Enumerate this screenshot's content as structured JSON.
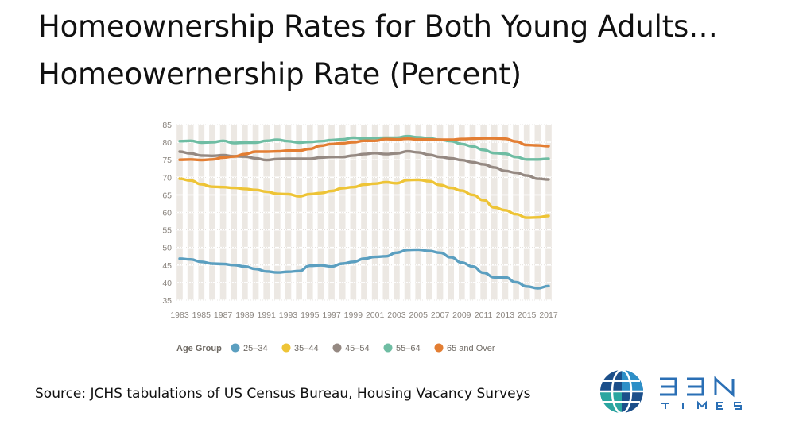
{
  "titles": {
    "line1": "Homeownership Rates for Both Young Adults…",
    "line2": "Homeowernership Rate (Percent)"
  },
  "source": "Source: JCHS tabulations of US Census Bureau, Housing Vacancy Surveys",
  "logo": {
    "brand": "BBN",
    "sub": "TIMES",
    "icon": "globe-icon"
  },
  "chart_data": {
    "type": "line",
    "ylim": [
      35,
      85
    ],
    "yticks": [
      35,
      40,
      45,
      50,
      55,
      60,
      65,
      70,
      75,
      80,
      85
    ],
    "xlim": [
      1983,
      2017
    ],
    "xticks": [
      1983,
      1985,
      1987,
      1989,
      1991,
      1993,
      1995,
      1997,
      1999,
      2001,
      2003,
      2005,
      2007,
      2009,
      2011,
      2013,
      2015,
      2017
    ],
    "grid": true,
    "legend_title": "Age Group",
    "legend_position": "bottom",
    "x": [
      1983,
      1984,
      1985,
      1986,
      1987,
      1988,
      1989,
      1990,
      1991,
      1992,
      1993,
      1994,
      1995,
      1996,
      1997,
      1998,
      1999,
      2000,
      2001,
      2002,
      2003,
      2004,
      2005,
      2006,
      2007,
      2008,
      2009,
      2010,
      2011,
      2012,
      2013,
      2014,
      2015,
      2016,
      2017
    ],
    "series": [
      {
        "name": "25–34",
        "color": "#5b9fc0",
        "values": [
          46.8,
          46.6,
          45.9,
          45.4,
          45.3,
          45.0,
          44.6,
          43.9,
          43.2,
          42.9,
          43.1,
          43.3,
          44.8,
          44.9,
          44.6,
          45.4,
          45.9,
          46.8,
          47.3,
          47.5,
          48.5,
          49.3,
          49.4,
          49.0,
          48.5,
          47.2,
          45.7,
          44.6,
          42.8,
          41.5,
          41.5,
          40.1,
          38.9,
          38.4,
          39.0
        ]
      },
      {
        "name": "35–44",
        "color": "#eec436",
        "values": [
          69.6,
          69.1,
          68.0,
          67.3,
          67.2,
          67.0,
          66.7,
          66.4,
          65.9,
          65.3,
          65.2,
          64.6,
          65.2,
          65.5,
          66.1,
          66.9,
          67.2,
          67.9,
          68.2,
          68.6,
          68.3,
          69.2,
          69.3,
          68.9,
          67.8,
          67.0,
          66.2,
          65.0,
          63.5,
          61.4,
          60.6,
          59.5,
          58.5,
          58.6,
          59.0
        ]
      },
      {
        "name": "45–54",
        "color": "#958982",
        "values": [
          77.3,
          76.8,
          76.2,
          76.1,
          76.3,
          76.0,
          75.9,
          75.4,
          74.9,
          75.2,
          75.3,
          75.3,
          75.3,
          75.6,
          75.8,
          75.8,
          76.2,
          76.6,
          76.9,
          76.6,
          76.8,
          77.4,
          77.1,
          76.4,
          75.8,
          75.4,
          74.9,
          74.3,
          73.7,
          72.8,
          71.8,
          71.3,
          70.5,
          69.6,
          69.4
        ]
      },
      {
        "name": "55–64",
        "color": "#6fbda3",
        "values": [
          80.3,
          80.4,
          79.9,
          80.0,
          80.4,
          79.8,
          79.9,
          79.9,
          80.4,
          80.7,
          80.3,
          79.9,
          80.1,
          80.3,
          80.6,
          80.8,
          81.3,
          81.0,
          81.2,
          81.3,
          81.3,
          81.7,
          81.4,
          81.1,
          80.7,
          80.3,
          79.5,
          78.8,
          77.8,
          76.9,
          76.7,
          75.8,
          75.1,
          75.1,
          75.3
        ]
      },
      {
        "name": "65 and Over",
        "color": "#e37e33",
        "values": [
          75.0,
          75.1,
          74.9,
          75.1,
          75.6,
          75.9,
          76.6,
          77.3,
          77.3,
          77.4,
          77.6,
          77.6,
          78.1,
          79.0,
          79.5,
          79.7,
          80.0,
          80.4,
          80.4,
          80.9,
          80.8,
          81.0,
          80.8,
          80.8,
          80.7,
          80.7,
          80.9,
          81.0,
          81.1,
          81.1,
          81.0,
          80.2,
          79.2,
          79.1,
          78.9
        ]
      }
    ]
  }
}
